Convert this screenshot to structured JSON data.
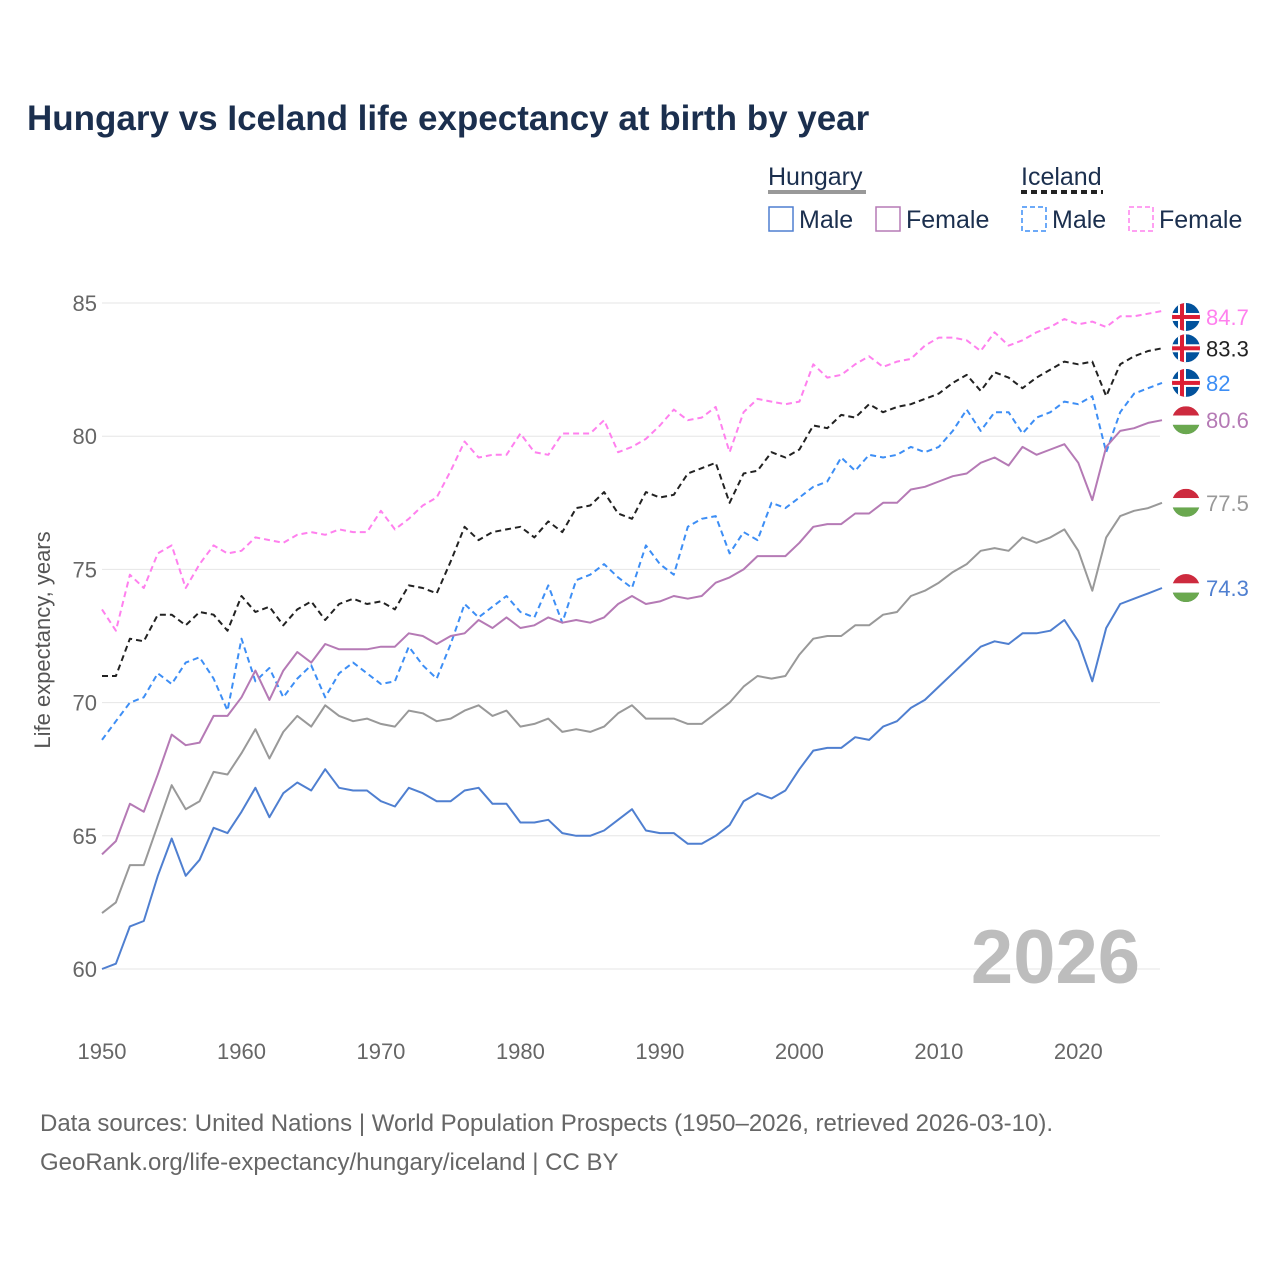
{
  "chart_data": {
    "type": "line",
    "title": "Hungary vs Iceland life expectancy at birth by year",
    "xlabel": "",
    "ylabel": "Life expectancy, years",
    "xlim": [
      1950,
      2026
    ],
    "ylim": [
      59.5,
      86
    ],
    "x_ticks": [
      1950,
      1960,
      1970,
      1980,
      1990,
      2000,
      2010,
      2020
    ],
    "y_ticks": [
      60,
      65,
      70,
      75,
      80,
      85
    ],
    "grid": true,
    "legend_position": "top-right",
    "legend": {
      "groups": [
        {
          "label": "Hungary",
          "items": [
            "Male",
            "Female"
          ]
        },
        {
          "label": "Iceland",
          "items": [
            "Male",
            "Female"
          ]
        }
      ]
    },
    "year_watermark": "2026",
    "x_start": 1950,
    "series": [
      {
        "name": "Iceland Female",
        "country": "Iceland",
        "color": "#ff80ee",
        "dashed": true,
        "end_label": "84.7",
        "values": [
          73.5,
          72.7,
          74.8,
          74.3,
          75.6,
          75.9,
          74.3,
          75.2,
          75.9,
          75.6,
          75.7,
          76.2,
          76.1,
          76.0,
          76.3,
          76.4,
          76.3,
          76.5,
          76.4,
          76.4,
          77.2,
          76.5,
          76.9,
          77.4,
          77.7,
          78.7,
          79.8,
          79.2,
          79.3,
          79.3,
          80.1,
          79.4,
          79.3,
          80.1,
          80.1,
          80.1,
          80.6,
          79.4,
          79.6,
          79.9,
          80.4,
          81.0,
          80.6,
          80.7,
          81.1,
          79.4,
          80.9,
          81.4,
          81.3,
          81.2,
          81.3,
          82.7,
          82.2,
          82.3,
          82.7,
          83.0,
          82.6,
          82.8,
          82.9,
          83.4,
          83.7,
          83.7,
          83.6,
          83.2,
          83.9,
          83.4,
          83.6,
          83.9,
          84.1,
          84.4,
          84.2,
          84.3,
          84.1,
          84.5,
          84.5,
          84.6,
          84.7
        ]
      },
      {
        "name": "Iceland Total",
        "country": "Iceland",
        "color": "#222222",
        "dashed": true,
        "end_label": "83.3",
        "values": [
          71.0,
          71.0,
          72.4,
          72.3,
          73.3,
          73.3,
          72.9,
          73.4,
          73.3,
          72.7,
          74.0,
          73.4,
          73.6,
          72.9,
          73.5,
          73.8,
          73.1,
          73.7,
          73.9,
          73.7,
          73.8,
          73.5,
          74.4,
          74.3,
          74.1,
          75.3,
          76.6,
          76.1,
          76.4,
          76.5,
          76.6,
          76.2,
          76.8,
          76.4,
          77.3,
          77.4,
          77.9,
          77.1,
          76.9,
          77.9,
          77.7,
          77.8,
          78.6,
          78.8,
          79.0,
          77.5,
          78.6,
          78.7,
          79.4,
          79.2,
          79.5,
          80.4,
          80.3,
          80.8,
          80.7,
          81.2,
          80.9,
          81.1,
          81.2,
          81.4,
          81.6,
          82.0,
          82.3,
          81.7,
          82.4,
          82.2,
          81.8,
          82.2,
          82.5,
          82.8,
          82.7,
          82.8,
          81.5,
          82.7,
          83.0,
          83.2,
          83.3
        ]
      },
      {
        "name": "Iceland Male",
        "country": "Iceland",
        "color": "#3d8ef5",
        "dashed": true,
        "end_label": "82",
        "values": [
          68.6,
          69.3,
          70.0,
          70.2,
          71.1,
          70.7,
          71.5,
          71.7,
          70.9,
          69.7,
          72.4,
          70.8,
          71.3,
          70.2,
          70.9,
          71.4,
          70.2,
          71.1,
          71.5,
          71.1,
          70.7,
          70.8,
          72.1,
          71.4,
          70.9,
          72.2,
          73.7,
          73.2,
          73.6,
          74.0,
          73.4,
          73.2,
          74.4,
          73.0,
          74.6,
          74.8,
          75.2,
          74.7,
          74.3,
          75.9,
          75.2,
          74.8,
          76.6,
          76.9,
          77.0,
          75.6,
          76.4,
          76.1,
          77.5,
          77.3,
          77.7,
          78.1,
          78.3,
          79.2,
          78.7,
          79.3,
          79.2,
          79.3,
          79.6,
          79.4,
          79.6,
          80.2,
          81.0,
          80.2,
          80.9,
          80.9,
          80.1,
          80.7,
          80.9,
          81.3,
          81.2,
          81.5,
          79.4,
          80.9,
          81.6,
          81.8,
          82.0
        ]
      },
      {
        "name": "Hungary Female",
        "country": "Hungary",
        "color": "#b57ab5",
        "dashed": false,
        "end_label": "80.6",
        "values": [
          64.3,
          64.8,
          66.2,
          65.9,
          67.3,
          68.8,
          68.4,
          68.5,
          69.5,
          69.5,
          70.2,
          71.2,
          70.1,
          71.2,
          71.9,
          71.5,
          72.2,
          72.0,
          72.0,
          72.0,
          72.1,
          72.1,
          72.6,
          72.5,
          72.2,
          72.5,
          72.6,
          73.1,
          72.8,
          73.2,
          72.8,
          72.9,
          73.2,
          73.0,
          73.1,
          73.0,
          73.2,
          73.7,
          74.0,
          73.7,
          73.8,
          74.0,
          73.9,
          74.0,
          74.5,
          74.7,
          75.0,
          75.5,
          75.5,
          75.5,
          76.0,
          76.6,
          76.7,
          76.7,
          77.1,
          77.1,
          77.5,
          77.5,
          78.0,
          78.1,
          78.3,
          78.5,
          78.6,
          79.0,
          79.2,
          78.9,
          79.6,
          79.3,
          79.5,
          79.7,
          79.0,
          77.6,
          79.6,
          80.2,
          80.3,
          80.5,
          80.6
        ]
      },
      {
        "name": "Hungary Total",
        "country": "Hungary",
        "color": "#999999",
        "dashed": false,
        "end_label": "77.5",
        "values": [
          62.1,
          62.5,
          63.9,
          63.9,
          65.4,
          66.9,
          66.0,
          66.3,
          67.4,
          67.3,
          68.1,
          69.0,
          67.9,
          68.9,
          69.5,
          69.1,
          69.9,
          69.5,
          69.3,
          69.4,
          69.2,
          69.1,
          69.7,
          69.6,
          69.3,
          69.4,
          69.7,
          69.9,
          69.5,
          69.7,
          69.1,
          69.2,
          69.4,
          68.9,
          69.0,
          68.9,
          69.1,
          69.6,
          69.9,
          69.4,
          69.4,
          69.4,
          69.2,
          69.2,
          69.6,
          70.0,
          70.6,
          71.0,
          70.9,
          71.0,
          71.8,
          72.4,
          72.5,
          72.5,
          72.9,
          72.9,
          73.3,
          73.4,
          74.0,
          74.2,
          74.5,
          74.9,
          75.2,
          75.7,
          75.8,
          75.7,
          76.2,
          76.0,
          76.2,
          76.5,
          75.7,
          74.2,
          76.2,
          77.0,
          77.2,
          77.3,
          77.5
        ]
      },
      {
        "name": "Hungary Male",
        "country": "Hungary",
        "color": "#4f7fd0",
        "dashed": false,
        "end_label": "74.3",
        "values": [
          60.0,
          60.2,
          61.6,
          61.8,
          63.5,
          64.9,
          63.5,
          64.1,
          65.3,
          65.1,
          65.9,
          66.8,
          65.7,
          66.6,
          67.0,
          66.7,
          67.5,
          66.8,
          66.7,
          66.7,
          66.3,
          66.1,
          66.8,
          66.6,
          66.3,
          66.3,
          66.7,
          66.8,
          66.2,
          66.2,
          65.5,
          65.5,
          65.6,
          65.1,
          65.0,
          65.0,
          65.2,
          65.6,
          66.0,
          65.2,
          65.1,
          65.1,
          64.7,
          64.7,
          65.0,
          65.4,
          66.3,
          66.6,
          66.4,
          66.7,
          67.5,
          68.2,
          68.3,
          68.3,
          68.7,
          68.6,
          69.1,
          69.3,
          69.8,
          70.1,
          70.6,
          71.1,
          71.6,
          72.1,
          72.3,
          72.2,
          72.6,
          72.6,
          72.7,
          73.1,
          72.3,
          70.8,
          72.8,
          73.7,
          73.9,
          74.1,
          74.3
        ]
      }
    ]
  },
  "source": {
    "line1": "Data sources: United Nations | World Population Prospects (1950–2026, retrieved 2026-03-10).",
    "line2": "GeoRank.org/life-expectancy/hungary/iceland | CC BY"
  }
}
